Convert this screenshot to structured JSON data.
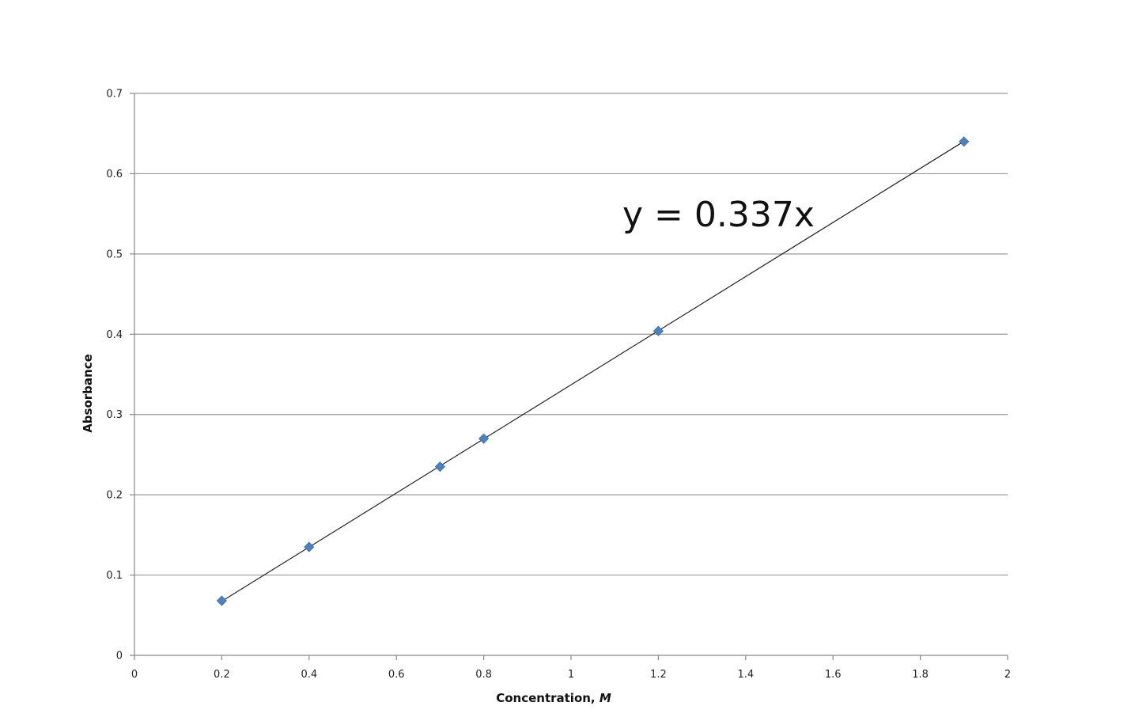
{
  "chart_data": {
    "type": "scatter",
    "xlabel": "Concentration, ",
    "xlabel_unit": "M",
    "ylabel": "Absorbance",
    "xlim": [
      0,
      2
    ],
    "ylim": [
      0,
      0.7
    ],
    "x_ticks": [
      "0",
      "0.2",
      "0.4",
      "0.6",
      "0.8",
      "1",
      "1.2",
      "1.4",
      "1.6",
      "1.8",
      "2"
    ],
    "y_ticks": [
      "0",
      "0.1",
      "0.2",
      "0.3",
      "0.4",
      "0.5",
      "0.6",
      "0.7"
    ],
    "grid": "horizontal",
    "series": [
      {
        "x": [
          0.2,
          0.4,
          0.7,
          0.8,
          1.2,
          1.9
        ],
        "y": [
          0.068,
          0.135,
          0.235,
          0.27,
          0.404,
          0.64
        ],
        "marker": "diamond",
        "color": "#4f81bd"
      }
    ],
    "trendline": {
      "slope": 0.337,
      "x_range": [
        0.2,
        1.9
      ],
      "equation_label": "y = 0.337x",
      "color": "#222222"
    }
  }
}
